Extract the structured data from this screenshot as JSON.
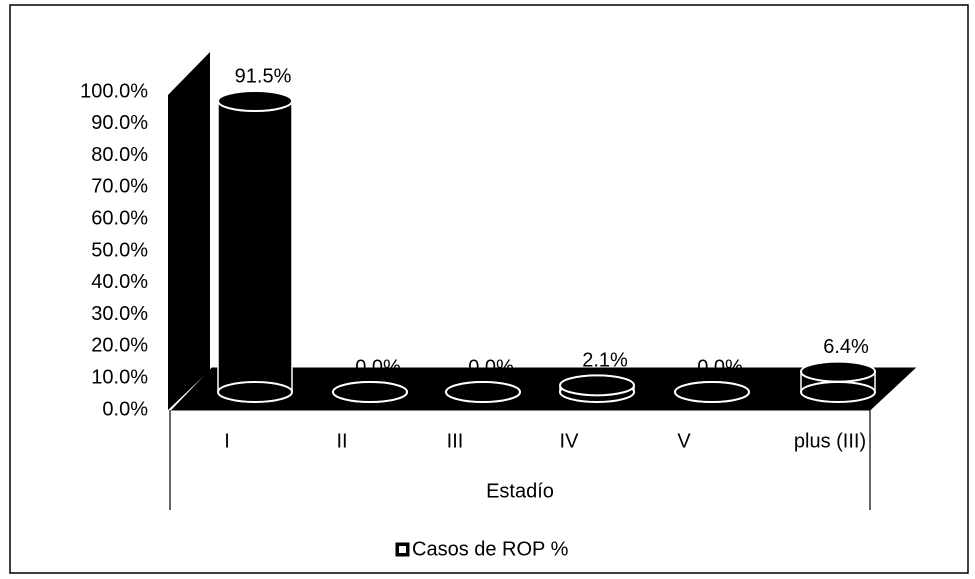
{
  "chart_data": {
    "type": "bar3d",
    "categories": [
      "I",
      "II",
      "III",
      "IV",
      "V",
      "plus (III)"
    ],
    "series": [
      {
        "name": "Casos de ROP %",
        "color": "#000000",
        "values": [
          91.5,
          0,
          0,
          2.1,
          0,
          6.4
        ],
        "value_labels": [
          "91.5%",
          "0.0%",
          "0.0%",
          "2.1%",
          "0.0%",
          "6.4%"
        ]
      }
    ],
    "xlabel": "Estadío",
    "ylim": [
      0,
      100
    ],
    "yticks": [
      {
        "value": 0,
        "label": "0.0%"
      },
      {
        "value": 10,
        "label": "10.0%"
      },
      {
        "value": 20,
        "label": "20.0%"
      },
      {
        "value": 30,
        "label": "30.0%"
      },
      {
        "value": 40,
        "label": "40.0%"
      },
      {
        "value": 50,
        "label": "50.0%"
      },
      {
        "value": 60,
        "label": "60.0%"
      },
      {
        "value": 70,
        "label": "70.0%"
      },
      {
        "value": 80,
        "label": "80.0%"
      },
      {
        "value": 90,
        "label": "90.0%"
      },
      {
        "value": 100,
        "label": "100.0%"
      }
    ],
    "legend": "bottom"
  }
}
